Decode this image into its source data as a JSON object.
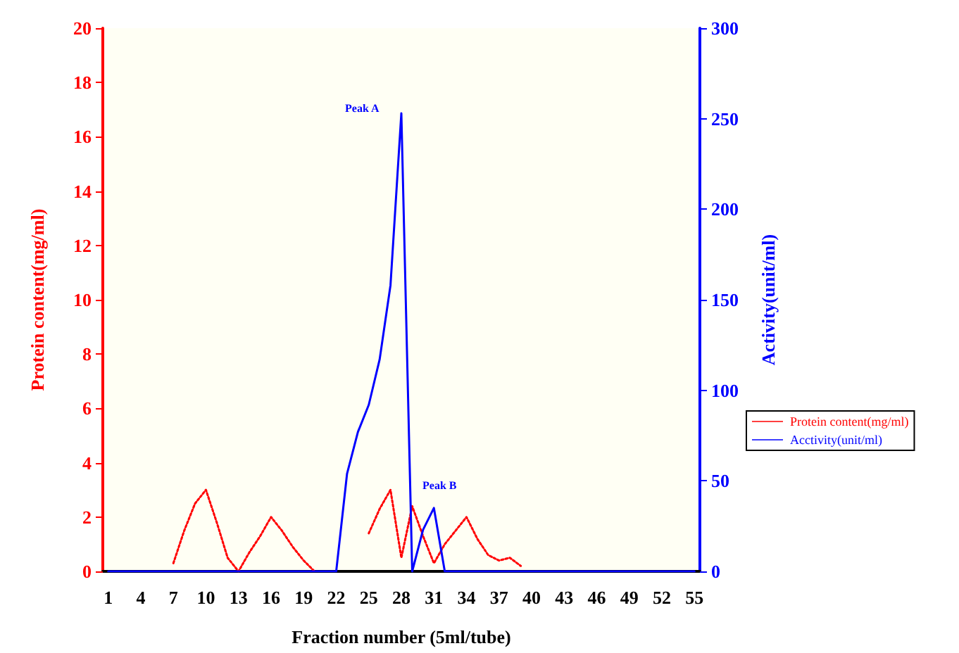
{
  "chart_data": {
    "type": "line",
    "xlabel": "Fraction number (5ml/tube)",
    "ylabel": "Protein content(mg/ml)",
    "y2label": "Activity(unit/ml)",
    "categories": [
      "1",
      null,
      null,
      "4",
      null,
      null,
      "7",
      null,
      null,
      "10",
      null,
      null,
      "13",
      null,
      null,
      "16",
      null,
      null,
      "19",
      null,
      null,
      "22",
      null,
      null,
      "25",
      null,
      null,
      "28",
      null,
      null,
      "31",
      null,
      null,
      "34",
      null,
      null,
      "37",
      null,
      null,
      "40",
      null,
      null,
      "43",
      null,
      null,
      "46",
      null,
      null,
      "49",
      null,
      null,
      "52",
      null,
      null,
      "55"
    ],
    "series": [
      {
        "name": "Protein content(mg/ml)",
        "color": "#ff0000",
        "line_style": "dotted",
        "values": [
          null,
          null,
          null,
          null,
          null,
          null,
          0.3,
          1.5,
          2.5,
          3,
          1.8,
          0.5,
          0,
          0.7,
          1.3,
          2,
          1.5,
          0.9,
          0.4,
          0,
          null,
          null,
          null,
          null,
          1.4,
          2.3,
          3,
          0.5,
          2.4,
          1.3,
          0.3,
          1,
          1.5,
          2,
          1.2,
          0.6,
          0.4,
          0.5,
          0.2,
          null,
          null,
          null,
          null,
          null,
          null,
          null,
          null,
          null,
          null,
          null,
          null,
          null,
          null,
          null,
          null
        ]
      },
      {
        "name": "Acctivity(unit/ml)",
        "color": "#0000ff",
        "line_style": "solid",
        "axis": "y2",
        "values": [
          0,
          0,
          0,
          0,
          0,
          0,
          0,
          0,
          0,
          0,
          0,
          0,
          0,
          0,
          0,
          0,
          0,
          0,
          0,
          0,
          0,
          0,
          54,
          77,
          92,
          117,
          158,
          253,
          0,
          23,
          35,
          0,
          0,
          0,
          0,
          0,
          0,
          0,
          0,
          0,
          0,
          0,
          0,
          0,
          0,
          0,
          0,
          0,
          0,
          0,
          0,
          0,
          0,
          0,
          0
        ]
      }
    ],
    "annotations": [
      "Peak A",
      "Peak B"
    ],
    "ylim": [
      0,
      20
    ],
    "yticks": [
      0,
      2,
      4,
      6,
      8,
      10,
      12,
      14,
      16,
      18,
      20
    ],
    "y2lim": [
      0,
      300
    ],
    "y2ticks": [
      0,
      50,
      100,
      150,
      200,
      250,
      300
    ],
    "grid": false,
    "legend": "right",
    "marker": "none"
  }
}
